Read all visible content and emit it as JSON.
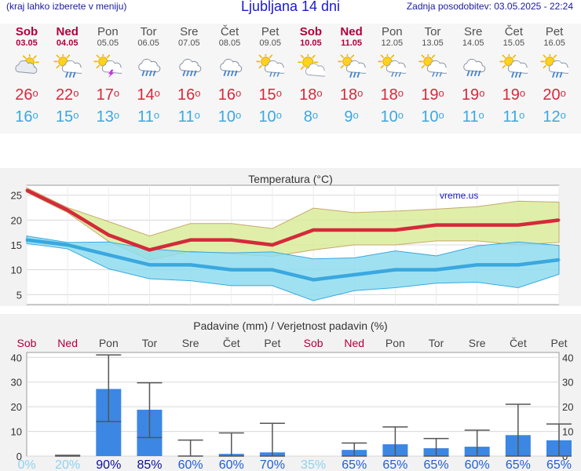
{
  "header": {
    "hint": "(kraj lahko izberete v meniju)",
    "title": "Ljubljana 14 dni",
    "updated": "Zadnja posodobitev: 03.05.2025 - 22:24"
  },
  "colors": {
    "max_temp": "#d42a3a",
    "min_temp": "#3aa8e0",
    "weekend": "#b0003a",
    "bar": "#3b87e3"
  },
  "forecast": {
    "days": [
      {
        "name": "Sob",
        "date": "03.05",
        "weekend": true,
        "icon": "partly-cloudy-icon",
        "max": "26",
        "min": "16"
      },
      {
        "name": "Ned",
        "date": "04.05",
        "weekend": true,
        "icon": "sun-rain-icon",
        "max": "22",
        "min": "15"
      },
      {
        "name": "Pon",
        "date": "05.05",
        "weekend": false,
        "icon": "sun-thunderstorm-icon",
        "max": "17",
        "min": "13"
      },
      {
        "name": "Tor",
        "date": "06.05",
        "weekend": false,
        "icon": "cloud-rain-icon",
        "max": "14",
        "min": "11"
      },
      {
        "name": "Sre",
        "date": "07.05",
        "weekend": false,
        "icon": "cloud-rain-icon",
        "max": "16",
        "min": "11"
      },
      {
        "name": "Čet",
        "date": "08.05",
        "weekend": false,
        "icon": "cloud-rain-icon",
        "max": "16",
        "min": "10"
      },
      {
        "name": "Pet",
        "date": "09.05",
        "weekend": false,
        "icon": "sun-light-rain-icon",
        "max": "15",
        "min": "10"
      },
      {
        "name": "Sob",
        "date": "10.05",
        "weekend": true,
        "icon": "sun-cloud-icon",
        "max": "18",
        "min": "8"
      },
      {
        "name": "Ned",
        "date": "11.05",
        "weekend": true,
        "icon": "sun-rain-icon",
        "max": "18",
        "min": "9"
      },
      {
        "name": "Pon",
        "date": "12.05",
        "weekend": false,
        "icon": "sun-light-rain-icon",
        "max": "18",
        "min": "10"
      },
      {
        "name": "Tor",
        "date": "13.05",
        "weekend": false,
        "icon": "sun-light-rain-icon",
        "max": "19",
        "min": "10"
      },
      {
        "name": "Sre",
        "date": "14.05",
        "weekend": false,
        "icon": "cloud-rain-icon",
        "max": "19",
        "min": "11"
      },
      {
        "name": "Čet",
        "date": "15.05",
        "weekend": false,
        "icon": "sun-rain-icon",
        "max": "19",
        "min": "11"
      },
      {
        "name": "Pet",
        "date": "16.05",
        "weekend": false,
        "icon": "sun-rain-icon",
        "max": "20",
        "min": "12"
      }
    ]
  },
  "chart_data": [
    {
      "type": "line",
      "title": "Temperatura (°C)",
      "watermark": "vreme.us",
      "x": [
        "Sob",
        "Ned",
        "Pon",
        "Tor",
        "Sre",
        "Čet",
        "Pet",
        "Sob",
        "Ned",
        "Pon",
        "Tor",
        "Sre",
        "Čet",
        "Pet"
      ],
      "ylim": [
        3,
        27
      ],
      "yticks": [
        5,
        10,
        15,
        20,
        25
      ],
      "series": [
        {
          "name": "max",
          "values": [
            26,
            22,
            17,
            14,
            16,
            16,
            15,
            18,
            18,
            18,
            19,
            19,
            19,
            20
          ]
        },
        {
          "name": "max_band_upper",
          "values": [
            26.5,
            22.5,
            19.7,
            16.8,
            19.3,
            19.3,
            18.3,
            22.4,
            21.5,
            21.8,
            22.2,
            22.7,
            23.8,
            23.6
          ]
        },
        {
          "name": "max_band_lower",
          "values": [
            25.6,
            21.5,
            15.7,
            12.0,
            13.7,
            13.2,
            12.7,
            14.0,
            15.0,
            15.0,
            15.8,
            15.8,
            15.0,
            15.5
          ]
        },
        {
          "name": "min",
          "values": [
            16,
            15,
            13,
            11,
            11,
            10,
            10,
            8,
            9,
            10,
            10,
            11,
            11,
            12
          ]
        },
        {
          "name": "min_band_upper",
          "values": [
            16.8,
            15.5,
            15.6,
            14.2,
            13.6,
            13.4,
            13.6,
            12.2,
            12.4,
            13.8,
            12.8,
            14.8,
            15.6,
            14.9
          ]
        },
        {
          "name": "min_band_lower",
          "values": [
            15.3,
            14.2,
            10.2,
            8.2,
            7.8,
            6.8,
            6.8,
            3.8,
            5.8,
            6.4,
            7.3,
            7.5,
            6.4,
            9.1
          ]
        }
      ]
    },
    {
      "type": "bar",
      "title": "Padavine (mm) / Verjetnost padavin (%)",
      "categories": [
        "Sob",
        "Ned",
        "Pon",
        "Tor",
        "Sre",
        "Čet",
        "Pet",
        "Sob",
        "Ned",
        "Pon",
        "Tor",
        "Sre",
        "Čet",
        "Pet"
      ],
      "ylim": [
        0,
        42
      ],
      "yticks": [
        0,
        10,
        20,
        30,
        40
      ],
      "values": [
        0,
        0.2,
        27.2,
        18.8,
        0.2,
        0.9,
        1.5,
        0,
        2.5,
        4.8,
        3.2,
        3.8,
        8.5,
        6.4
      ],
      "range_low": [
        null,
        0,
        14.0,
        7.5,
        0,
        0,
        0,
        null,
        0,
        0,
        0,
        0,
        0,
        0
      ],
      "range_high": [
        null,
        0.3,
        41.0,
        29.7,
        6.5,
        9.4,
        13.3,
        null,
        5.3,
        11.8,
        7.1,
        10.5,
        21.0,
        13.0
      ],
      "probability": [
        "0%",
        "20%",
        "90%",
        "85%",
        "60%",
        "60%",
        "70%",
        "35%",
        "65%",
        "65%",
        "65%",
        "60%",
        "65%",
        "65%"
      ]
    }
  ]
}
